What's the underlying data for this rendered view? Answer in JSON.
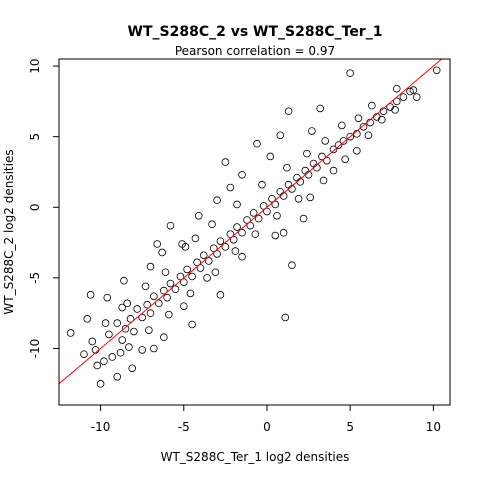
{
  "chart_data": {
    "type": "scatter",
    "title": "WT_S288C_2 vs WT_S288C_Ter_1",
    "subtitle": "Pearson correlation =  0.97",
    "xlabel": "WT_S288C_Ter_1 log2 densities",
    "ylabel": "WT_S288C_2 log2 densities",
    "xlim": [
      -12.5,
      11
    ],
    "ylim": [
      -14,
      10.5
    ],
    "xticks": [
      -10,
      -5,
      0,
      5,
      10
    ],
    "yticks": [
      -10,
      -5,
      0,
      5,
      10
    ],
    "grid": false,
    "legend": "none",
    "marker": "open-circle",
    "point_color": "#000000",
    "fit_line": {
      "color": "#ff0000",
      "slope": 1.0,
      "intercept": 0.0
    },
    "series": [
      {
        "values": [
          {
            "x": -10.2,
            "y": -11.2
          },
          {
            "x": -9.8,
            "y": -10.9
          },
          {
            "x": -10.0,
            "y": -12.5
          },
          {
            "x": -9.5,
            "y": -9.0
          },
          {
            "x": -9.0,
            "y": -8.2
          },
          {
            "x": -8.7,
            "y": -9.4
          },
          {
            "x": -8.5,
            "y": -8.6
          },
          {
            "x": -8.2,
            "y": -7.9
          },
          {
            "x": -8.0,
            "y": -8.8
          },
          {
            "x": -7.8,
            "y": -7.2
          },
          {
            "x": -7.5,
            "y": -7.8
          },
          {
            "x": -7.2,
            "y": -6.9
          },
          {
            "x": -7.0,
            "y": -7.5
          },
          {
            "x": -6.8,
            "y": -6.3
          },
          {
            "x": -6.5,
            "y": -6.8
          },
          {
            "x": -6.2,
            "y": -5.9
          },
          {
            "x": -6.0,
            "y": -6.4
          },
          {
            "x": -5.8,
            "y": -5.4
          },
          {
            "x": -5.5,
            "y": -5.8
          },
          {
            "x": -5.2,
            "y": -4.9
          },
          {
            "x": -5.0,
            "y": -5.3
          },
          {
            "x": -4.8,
            "y": -4.4
          },
          {
            "x": -4.5,
            "y": -4.9
          },
          {
            "x": -4.2,
            "y": -3.9
          },
          {
            "x": -4.0,
            "y": -4.3
          },
          {
            "x": -3.8,
            "y": -3.4
          },
          {
            "x": -3.5,
            "y": -3.8
          },
          {
            "x": -3.2,
            "y": -2.9
          },
          {
            "x": -3.0,
            "y": -3.3
          },
          {
            "x": -2.8,
            "y": -2.4
          },
          {
            "x": -2.5,
            "y": -2.8
          },
          {
            "x": -2.2,
            "y": -1.9
          },
          {
            "x": -2.0,
            "y": -2.3
          },
          {
            "x": -1.8,
            "y": -1.4
          },
          {
            "x": -1.5,
            "y": -1.8
          },
          {
            "x": -1.2,
            "y": -0.9
          },
          {
            "x": -1.0,
            "y": -1.3
          },
          {
            "x": -0.8,
            "y": -0.4
          },
          {
            "x": -0.5,
            "y": -0.8
          },
          {
            "x": -0.2,
            "y": 0.1
          },
          {
            "x": 0.0,
            "y": -0.3
          },
          {
            "x": 0.3,
            "y": 0.6
          },
          {
            "x": 0.5,
            "y": 0.2
          },
          {
            "x": 0.8,
            "y": 1.1
          },
          {
            "x": 1.0,
            "y": 0.8
          },
          {
            "x": 1.3,
            "y": 1.6
          },
          {
            "x": 1.5,
            "y": 1.3
          },
          {
            "x": 1.8,
            "y": 2.1
          },
          {
            "x": 2.0,
            "y": 1.8
          },
          {
            "x": 2.3,
            "y": 2.6
          },
          {
            "x": 2.5,
            "y": 2.3
          },
          {
            "x": 2.8,
            "y": 3.1
          },
          {
            "x": 3.0,
            "y": 2.8
          },
          {
            "x": 3.3,
            "y": 3.6
          },
          {
            "x": 3.6,
            "y": 3.3
          },
          {
            "x": 4.0,
            "y": 4.1
          },
          {
            "x": 4.3,
            "y": 4.4
          },
          {
            "x": 4.6,
            "y": 4.7
          },
          {
            "x": 5.0,
            "y": 5.0
          },
          {
            "x": 5.4,
            "y": 5.2
          },
          {
            "x": 5.8,
            "y": 5.7
          },
          {
            "x": 6.2,
            "y": 6.0
          },
          {
            "x": 6.6,
            "y": 6.4
          },
          {
            "x": 7.0,
            "y": 6.8
          },
          {
            "x": 7.4,
            "y": 7.1
          },
          {
            "x": 7.8,
            "y": 7.5
          },
          {
            "x": 8.2,
            "y": 7.8
          },
          {
            "x": 8.6,
            "y": 8.2
          },
          {
            "x": 10.2,
            "y": 9.7
          },
          {
            "x": 5.0,
            "y": 9.5
          },
          {
            "x": -2.5,
            "y": 3.2
          },
          {
            "x": -0.6,
            "y": 4.5
          },
          {
            "x": 0.8,
            "y": 5.1
          },
          {
            "x": 1.3,
            "y": 6.8
          },
          {
            "x": 3.2,
            "y": 7.0
          },
          {
            "x": -1.5,
            "y": 2.3
          },
          {
            "x": 1.0,
            "y": -1.8
          },
          {
            "x": 2.2,
            "y": -0.8
          },
          {
            "x": 1.5,
            "y": -4.1
          },
          {
            "x": 1.1,
            "y": -7.8
          },
          {
            "x": -3.0,
            "y": 0.5
          },
          {
            "x": -5.8,
            "y": -1.3
          },
          {
            "x": -4.3,
            "y": -2.2
          },
          {
            "x": -2.8,
            "y": -6.2
          },
          {
            "x": -4.5,
            "y": -8.3
          },
          {
            "x": -6.2,
            "y": -9.2
          },
          {
            "x": -7.5,
            "y": -10.1
          },
          {
            "x": -9.0,
            "y": -12.0
          },
          {
            "x": -10.5,
            "y": -9.5
          },
          {
            "x": -11.0,
            "y": -10.4
          },
          {
            "x": -11.8,
            "y": -8.9
          },
          {
            "x": -10.8,
            "y": -7.9
          },
          {
            "x": -10.6,
            "y": -6.2
          },
          {
            "x": -9.6,
            "y": -6.4
          },
          {
            "x": -8.6,
            "y": -5.2
          },
          {
            "x": -6.3,
            "y": -3.2
          },
          {
            "x": -5.1,
            "y": -2.6
          },
          {
            "x": -7.0,
            "y": -4.2
          },
          {
            "x": -8.4,
            "y": -6.8
          },
          {
            "x": -8.8,
            "y": -10.3
          },
          {
            "x": -9.3,
            "y": -10.6
          },
          {
            "x": -8.1,
            "y": -11.4
          },
          {
            "x": -6.8,
            "y": -10.0
          },
          {
            "x": -5.0,
            "y": -7.0
          },
          {
            "x": -3.6,
            "y": -5.0
          },
          {
            "x": -1.5,
            "y": -3.5
          },
          {
            "x": 0.5,
            "y": -2.0
          },
          {
            "x": 2.6,
            "y": 0.7
          },
          {
            "x": 4.0,
            "y": 2.6
          },
          {
            "x": 5.4,
            "y": 4.0
          },
          {
            "x": 6.1,
            "y": 5.1
          },
          {
            "x": 6.9,
            "y": 6.2
          },
          {
            "x": 7.7,
            "y": 6.9
          },
          {
            "x": 8.8,
            "y": 8.3
          },
          {
            "x": 9.0,
            "y": 7.8
          },
          {
            "x": 7.8,
            "y": 8.4
          },
          {
            "x": 6.3,
            "y": 7.2
          },
          {
            "x": 5.5,
            "y": 6.3
          },
          {
            "x": 4.5,
            "y": 5.8
          },
          {
            "x": 3.5,
            "y": 4.7
          },
          {
            "x": 2.4,
            "y": 3.8
          },
          {
            "x": 1.2,
            "y": 2.8
          },
          {
            "x": -0.3,
            "y": 1.6
          },
          {
            "x": -1.8,
            "y": 0.2
          },
          {
            "x": -3.3,
            "y": -1.2
          },
          {
            "x": -4.9,
            "y": -2.8
          },
          {
            "x": -6.1,
            "y": -4.6
          },
          {
            "x": -7.3,
            "y": -5.6
          },
          {
            "x": -8.7,
            "y": -7.1
          },
          {
            "x": -9.7,
            "y": -8.2
          },
          {
            "x": -10.3,
            "y": -10.1
          },
          {
            "x": -8.3,
            "y": -9.9
          },
          {
            "x": -7.1,
            "y": -8.7
          },
          {
            "x": -5.9,
            "y": -7.6
          },
          {
            "x": -4.6,
            "y": -6.1
          },
          {
            "x": -3.1,
            "y": -4.6
          },
          {
            "x": -1.9,
            "y": -3.1
          },
          {
            "x": -0.7,
            "y": -1.9
          },
          {
            "x": 0.6,
            "y": -0.6
          },
          {
            "x": 1.9,
            "y": 0.6
          },
          {
            "x": 3.4,
            "y": 1.9
          },
          {
            "x": 4.7,
            "y": 3.4
          },
          {
            "x": 2.7,
            "y": 5.4
          },
          {
            "x": 0.2,
            "y": 3.6
          },
          {
            "x": -2.2,
            "y": 1.4
          },
          {
            "x": -4.1,
            "y": -0.6
          },
          {
            "x": -6.6,
            "y": -2.6
          }
        ]
      }
    ]
  }
}
